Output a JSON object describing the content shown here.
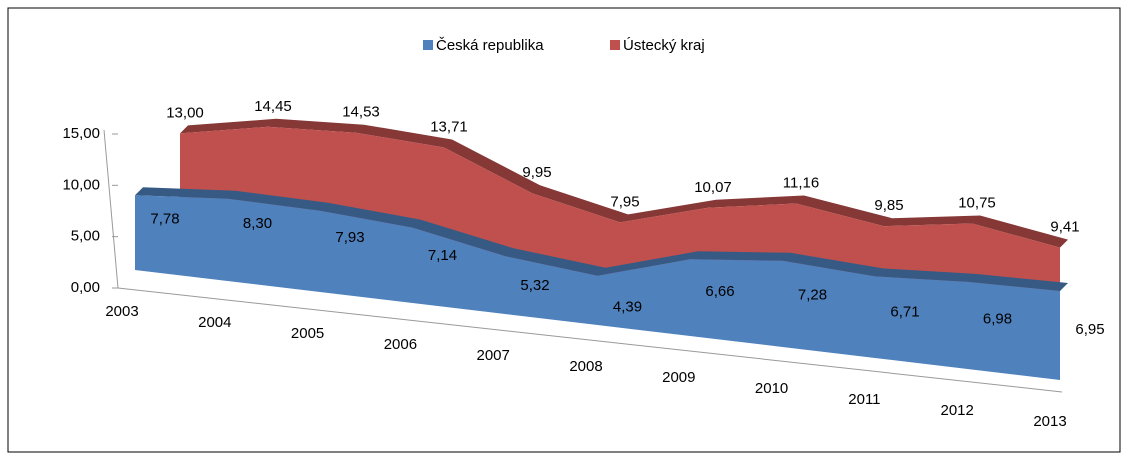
{
  "chart_data": {
    "type": "area3d",
    "categories": [
      "2003",
      "2004",
      "2005",
      "2006",
      "2007",
      "2008",
      "2009",
      "2010",
      "2011",
      "2012",
      "2013"
    ],
    "series": [
      {
        "name": "Česká republika",
        "color": "#4f81bd",
        "values": [
          7.78,
          8.3,
          7.93,
          7.14,
          5.32,
          4.39,
          6.66,
          7.28,
          6.71,
          6.98,
          6.95
        ],
        "value_labels": [
          "7,78",
          "8,30",
          "7,93",
          "7,14",
          "5,32",
          "4,39",
          "6,66",
          "7,28",
          "6,71",
          "6,98",
          "6,95"
        ]
      },
      {
        "name": "Ústecký kraj",
        "color": "#c0504d",
        "values": [
          13.0,
          14.45,
          14.53,
          13.71,
          9.95,
          7.95,
          10.07,
          11.16,
          9.85,
          10.75,
          9.41
        ],
        "value_labels": [
          "13,00",
          "14,45",
          "14,53",
          "13,71",
          "9,95",
          "7,95",
          "10,07",
          "11,16",
          "9,85",
          "10,75",
          "9,41"
        ]
      }
    ],
    "ylim": [
      0,
      15
    ],
    "yticks": [
      {
        "value": 0,
        "label": "0,00"
      },
      {
        "value": 5,
        "label": "5,00"
      },
      {
        "value": 10,
        "label": "10,00"
      },
      {
        "value": 15,
        "label": "15,00"
      }
    ],
    "legend": "top"
  }
}
